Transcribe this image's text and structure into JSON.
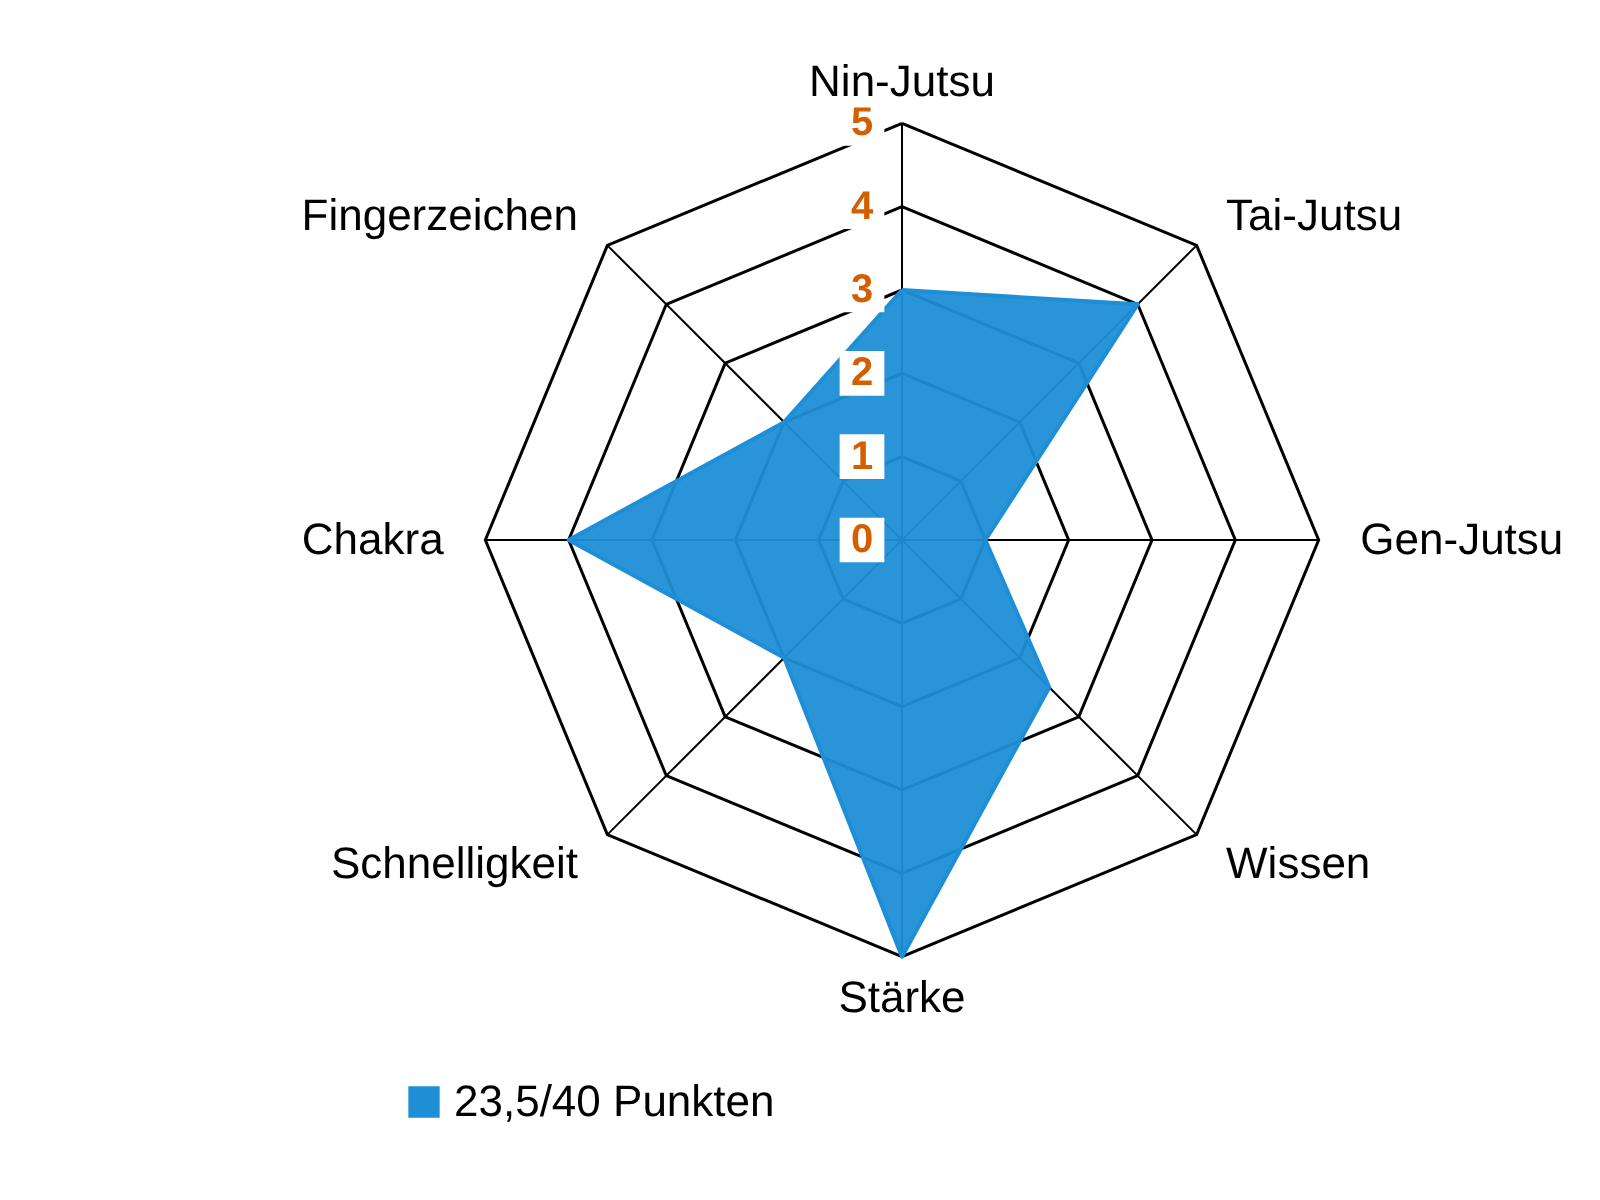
{
  "chart_data": {
    "type": "radar",
    "categories": [
      "Nin-Jutsu",
      "Tai-Jutsu",
      "Gen-Jutsu",
      "Wissen",
      "Stärke",
      "Schnelligkeit",
      "Chakra",
      "Fingerzeichen"
    ],
    "series": [
      {
        "name": "23,5/40 Punkten",
        "color": "#1e8fd6",
        "values": [
          3,
          4,
          1,
          2.5,
          5,
          2,
          4,
          2
        ]
      }
    ],
    "ylim": [
      0,
      5
    ],
    "yticks": [
      0,
      1,
      2,
      3,
      4,
      5
    ],
    "grid": true,
    "legend": "bottom"
  }
}
